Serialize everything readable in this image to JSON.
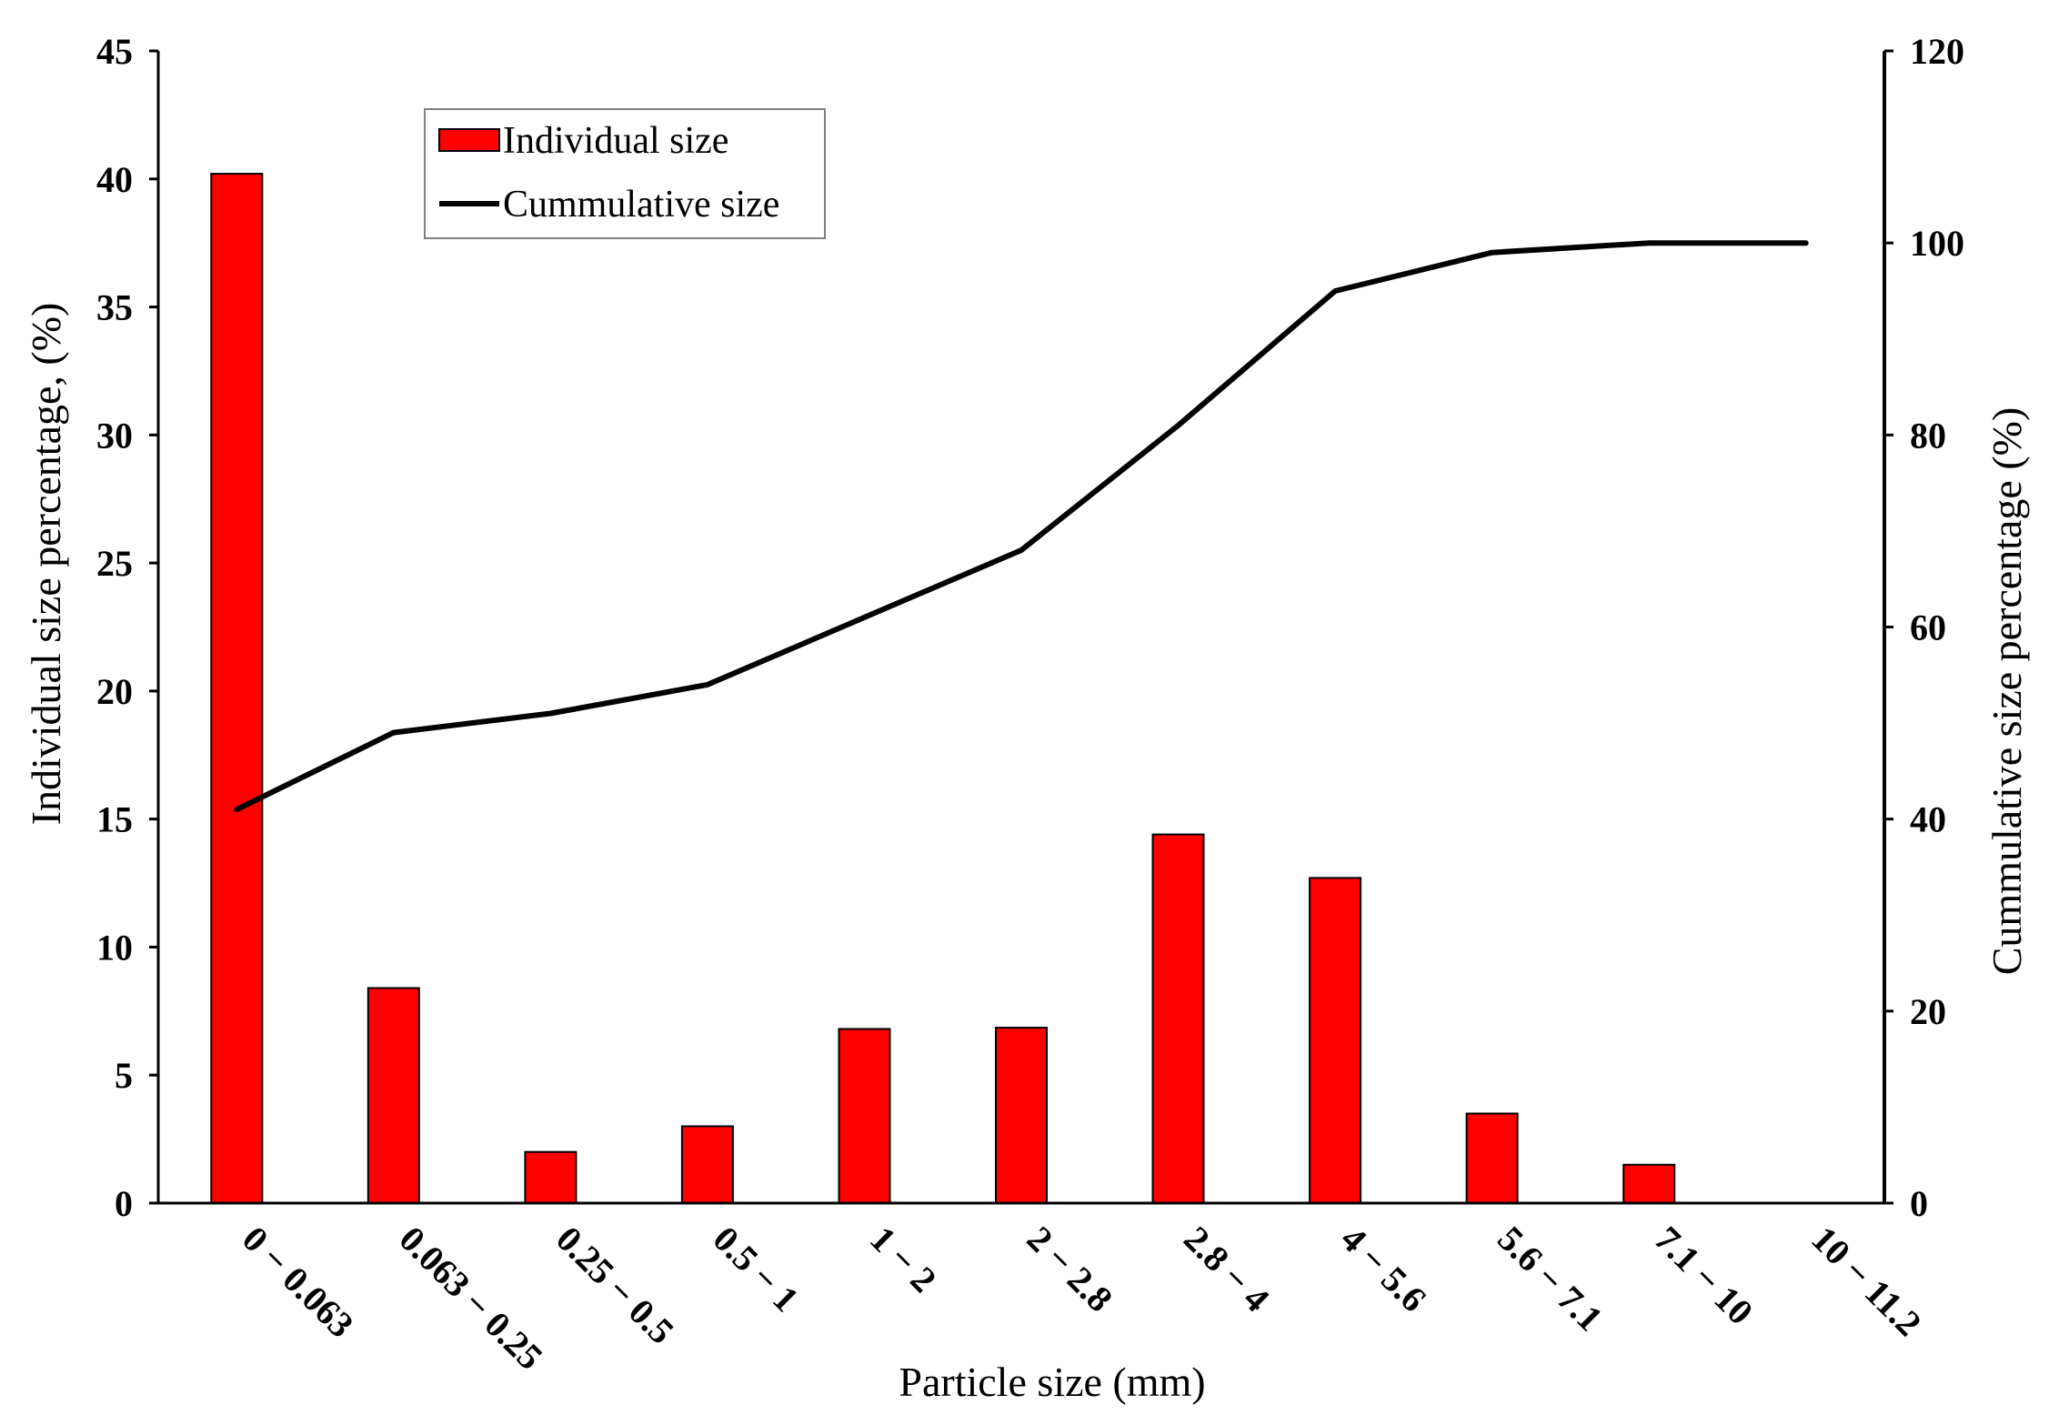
{
  "chart_data": {
    "type": "bar",
    "categories": [
      "0 − 0.063",
      "0.063 − 0.25",
      "0.25 − 0.5",
      "0.5 − 1",
      "1 − 2",
      "2 − 2.8",
      "2.8 − 4",
      "4 − 5.6",
      "5.6 − 7.1",
      "7.1 − 10",
      "10 − 11.2"
    ],
    "series": [
      {
        "name": "Individual size",
        "type": "bar",
        "axis": "left",
        "color": "#ff0000",
        "values": [
          40.2,
          8.4,
          2.0,
          3.0,
          6.8,
          6.85,
          14.4,
          12.7,
          3.5,
          1.5,
          0
        ]
      },
      {
        "name": "Cummulative size",
        "type": "line",
        "axis": "right",
        "color": "#000000",
        "values": [
          41,
          49,
          51,
          54,
          61,
          68,
          81,
          95,
          99,
          100,
          100
        ]
      }
    ],
    "xlabel": "Particle size (mm)",
    "ylabel": "Individual size percentage, (%)",
    "y2label": "Cummulative size percentage (%)",
    "ylim": [
      0,
      45
    ],
    "yticks": [
      "0",
      "5",
      "10",
      "15",
      "20",
      "25",
      "30",
      "35",
      "40",
      "45"
    ],
    "y2lim": [
      0,
      120
    ],
    "y2ticks": [
      "0",
      "20",
      "40",
      "60",
      "80",
      "100",
      "120"
    ],
    "legend_position": "top-left",
    "grid": false
  }
}
